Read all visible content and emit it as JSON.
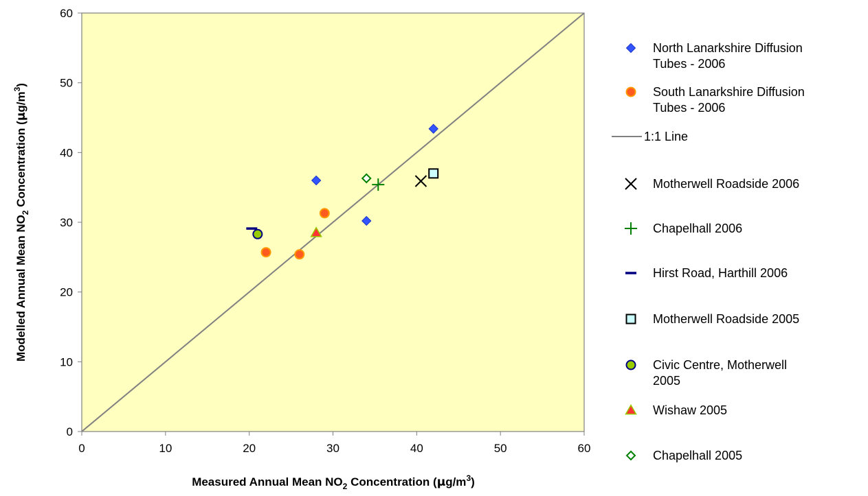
{
  "chart_data": {
    "type": "scatter",
    "xlabel": {
      "prefix": "Measured Annual Mean NO",
      "sub": "2",
      "mid": " Concentration (",
      "mu": "μ",
      "unit_pre": "g/m",
      "sup": "3",
      "suffix": ")"
    },
    "ylabel": {
      "prefix": "Modelled Annual Mean NO",
      "sub": "2",
      "mid": " Concentration (",
      "mu": "μ",
      "unit_pre": "g/m",
      "sup": "3",
      "suffix": ")"
    },
    "xlim": [
      0,
      60
    ],
    "ylim": [
      0,
      60
    ],
    "xticks": [
      0,
      10,
      20,
      30,
      40,
      50,
      60
    ],
    "yticks": [
      0,
      10,
      20,
      30,
      40,
      50,
      60
    ],
    "plot_background": "#ffffc0",
    "grid": false,
    "legend_position": "right",
    "series": [
      {
        "name": "North Lanarkshire Diffusion Tubes - 2006",
        "legend_lines": [
          "North Lanarkshire Diffusion",
          "Tubes - 2006"
        ],
        "marker": "diamond",
        "color": "#3355ff",
        "edge": "#1a33cc",
        "points": [
          [
            28,
            36
          ],
          [
            34,
            30.2
          ],
          [
            42,
            43.4
          ]
        ]
      },
      {
        "name": "South Lanarkshire Diffusion Tubes - 2006",
        "legend_lines": [
          "South Lanarkshire Diffusion",
          "Tubes - 2006"
        ],
        "marker": "circle",
        "color": "#ff5a1f",
        "edge": "#ff9900",
        "points": [
          [
            22,
            25.7
          ],
          [
            26,
            25.4
          ],
          [
            29,
            31.3
          ]
        ]
      },
      {
        "name": "1:1 Line",
        "legend_lines": [
          "1:1 Line"
        ],
        "marker": "line",
        "color": "#808080",
        "points": [
          [
            0,
            0
          ],
          [
            60,
            60
          ]
        ]
      },
      {
        "name": "Motherwell Roadside 2006",
        "legend_lines": [
          "Motherwell Roadside 2006"
        ],
        "marker": "x",
        "color": "#000000",
        "points": [
          [
            40.5,
            35.9
          ]
        ]
      },
      {
        "name": "Chapelhall 2006",
        "legend_lines": [
          "Chapelhall 2006"
        ],
        "marker": "plus",
        "color": "#008000",
        "points": [
          [
            35.4,
            35.4
          ]
        ]
      },
      {
        "name": "Hirst Road, Harthill 2006",
        "legend_lines": [
          "Hirst Road, Harthill 2006"
        ],
        "marker": "dash",
        "color": "#000080",
        "points": [
          [
            20.3,
            29.1
          ]
        ]
      },
      {
        "name": "Motherwell Roadside 2005",
        "legend_lines": [
          "Motherwell Roadside 2005"
        ],
        "marker": "square",
        "color": "#ccffff",
        "edge": "#000000",
        "points": [
          [
            42,
            37
          ]
        ]
      },
      {
        "name": "Civic Centre, Motherwell 2005",
        "legend_lines": [
          "Civic Centre, Motherwell",
          "2005"
        ],
        "marker": "circle",
        "color": "#99cc00",
        "edge": "#000080",
        "points": [
          [
            21,
            28.3
          ]
        ]
      },
      {
        "name": "Wishaw 2005",
        "legend_lines": [
          "Wishaw 2005"
        ],
        "marker": "triangle",
        "color": "#ff3333",
        "edge": "#99cc00",
        "points": [
          [
            28,
            28.5
          ]
        ]
      },
      {
        "name": "Chapelhall 2005",
        "legend_lines": [
          "Chapelhall 2005"
        ],
        "marker": "diamond-open",
        "color": "#ffffff",
        "edge": "#008000",
        "points": [
          [
            34,
            36.3
          ]
        ]
      }
    ]
  }
}
